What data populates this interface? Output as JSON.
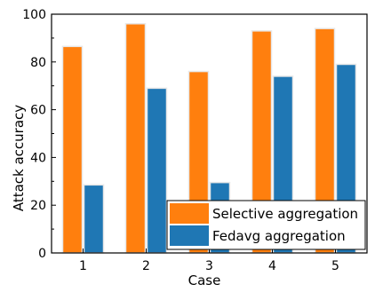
{
  "chart_data": {
    "type": "bar",
    "categories": [
      "1",
      "2",
      "3",
      "4",
      "5"
    ],
    "series": [
      {
        "name": "Selective aggregation",
        "values": [
          86.5,
          96,
          76,
          93,
          94
        ],
        "color": "#ff7f0e"
      },
      {
        "name": "Fedavg aggregation",
        "values": [
          28.5,
          69,
          29.5,
          74,
          79
        ],
        "color": "#1f77b4"
      }
    ],
    "xlabel": "Case",
    "ylabel": "Attack accuracy",
    "ylim": [
      0,
      100
    ],
    "yticks": [
      "0",
      "20",
      "40",
      "60",
      "80",
      "100"
    ],
    "grid": false,
    "legend_position": "bottom-right"
  }
}
